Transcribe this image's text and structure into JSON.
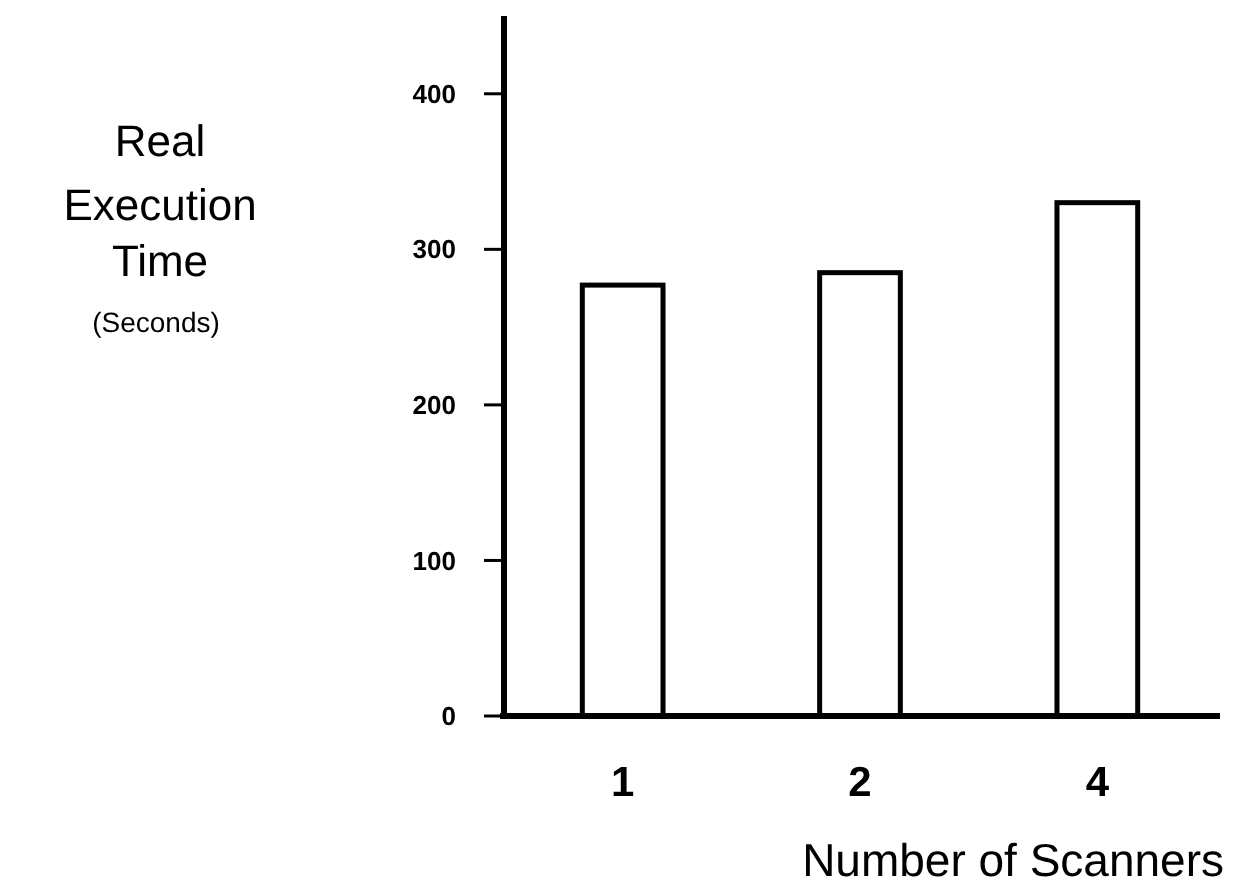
{
  "chart_data": {
    "type": "bar",
    "xlabel": "Number of Scanners",
    "ylabel": "Real Execution Time (Seconds)",
    "categories": [
      "1",
      "2",
      "4"
    ],
    "values": [
      277,
      285,
      330
    ],
    "color": "#ffffff",
    "ylim": [
      0,
      450
    ],
    "yticks": [
      0,
      100,
      200,
      300,
      400
    ],
    "grid": false
  }
}
